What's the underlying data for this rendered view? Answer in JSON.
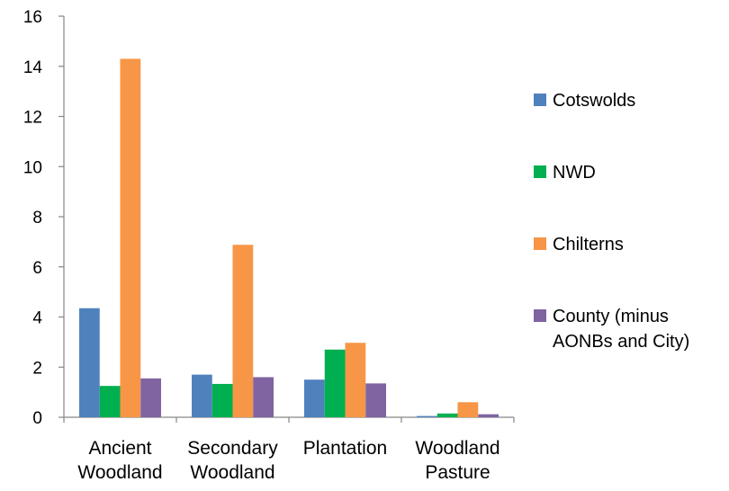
{
  "chart_data": {
    "type": "bar",
    "categories": [
      [
        "Ancient",
        "Woodland"
      ],
      [
        "Secondary",
        "Woodland"
      ],
      [
        "Plantation"
      ],
      [
        "Woodland",
        "Pasture"
      ]
    ],
    "series": [
      {
        "name": "Cotswolds",
        "color": "#4F81BD",
        "values": [
          4.35,
          1.7,
          1.5,
          0.05
        ]
      },
      {
        "name": "NWD",
        "color": "#00B050",
        "values": [
          1.25,
          1.33,
          2.7,
          0.15
        ]
      },
      {
        "name": "Chilterns",
        "color": "#F79646",
        "values": [
          14.3,
          6.88,
          2.97,
          0.6
        ]
      },
      {
        "name": "County (minus AONBs and City)",
        "legend_lines": [
          "County (minus",
          "AONBs and City)"
        ],
        "color": "#8064A2",
        "values": [
          1.55,
          1.6,
          1.35,
          0.12
        ]
      }
    ],
    "ylim": [
      0,
      16
    ],
    "yticks": [
      0,
      2,
      4,
      6,
      8,
      10,
      12,
      14,
      16
    ],
    "title": "",
    "xlabel": "",
    "ylabel": "",
    "grid": false,
    "legend_position": "right"
  }
}
